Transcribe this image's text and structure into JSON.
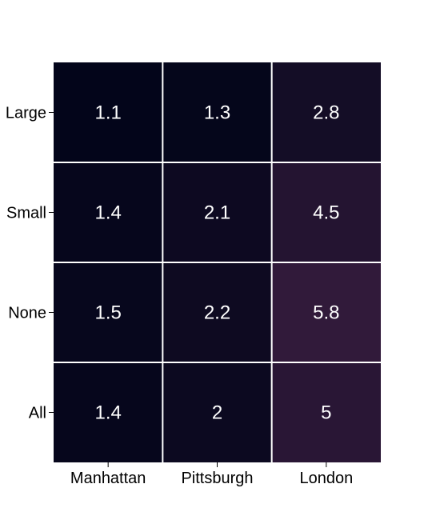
{
  "chart_data": {
    "type": "heatmap",
    "x_categories": [
      "Manhattan",
      "Pittsburgh",
      "London"
    ],
    "y_categories": [
      "Large",
      "Small",
      "None",
      "All"
    ],
    "values": [
      [
        1.1,
        1.3,
        2.8
      ],
      [
        1.4,
        2.1,
        4.5
      ],
      [
        1.5,
        2.2,
        5.8
      ],
      [
        1.4,
        2,
        5
      ]
    ],
    "value_labels": [
      [
        "1.1",
        "1.3",
        "2.8"
      ],
      [
        "1.4",
        "2.1",
        "4.5"
      ],
      [
        "1.5",
        "2.2",
        "5.8"
      ],
      [
        "1.4",
        "2",
        "5"
      ]
    ],
    "colormap": {
      "low": "#03051a",
      "high": "#311a3a"
    },
    "color_range": [
      1.1,
      5.8
    ],
    "cell_border_color": "#ffffff",
    "text_color": "#ffffff",
    "legend": "none"
  }
}
